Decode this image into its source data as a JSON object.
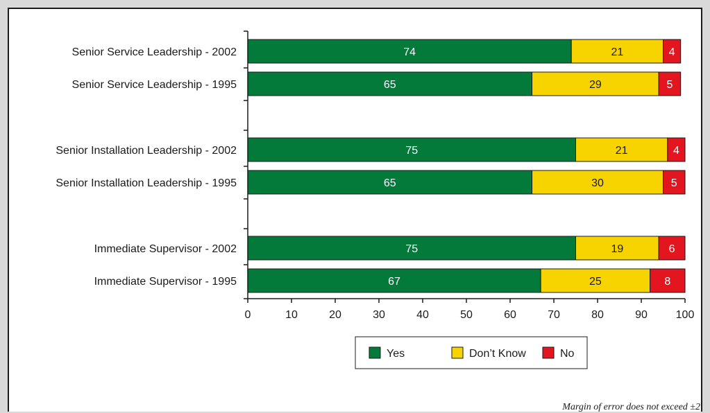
{
  "chart_data": {
    "type": "bar",
    "orientation": "horizontal",
    "stacked": true,
    "categories": [
      "Senior Service Leadership - 2002",
      "Senior Service Leadership - 1995",
      "Senior Installation Leadership - 2002",
      "Senior Installation Leadership - 1995",
      "Immediate Supervisor - 2002",
      "Immediate Supervisor - 1995"
    ],
    "series": [
      {
        "name": "Yes",
        "color": "#047a3a",
        "label_color": "#ffffff",
        "values": [
          74,
          65,
          75,
          65,
          75,
          67
        ]
      },
      {
        "name": "Don’t Know",
        "color": "#f7d400",
        "label_color": "#1a1a1a",
        "values": [
          21,
          29,
          21,
          30,
          19,
          25
        ]
      },
      {
        "name": "No",
        "color": "#e3161f",
        "label_color": "#ffffff",
        "values": [
          4,
          5,
          4,
          5,
          6,
          8
        ]
      }
    ],
    "xlim": [
      0,
      100
    ],
    "xticks": [
      0,
      10,
      20,
      30,
      40,
      50,
      60,
      70,
      80,
      90,
      100
    ],
    "grid": false,
    "legend_position": "bottom"
  },
  "footnote": "Margin of error does not exceed ±2"
}
